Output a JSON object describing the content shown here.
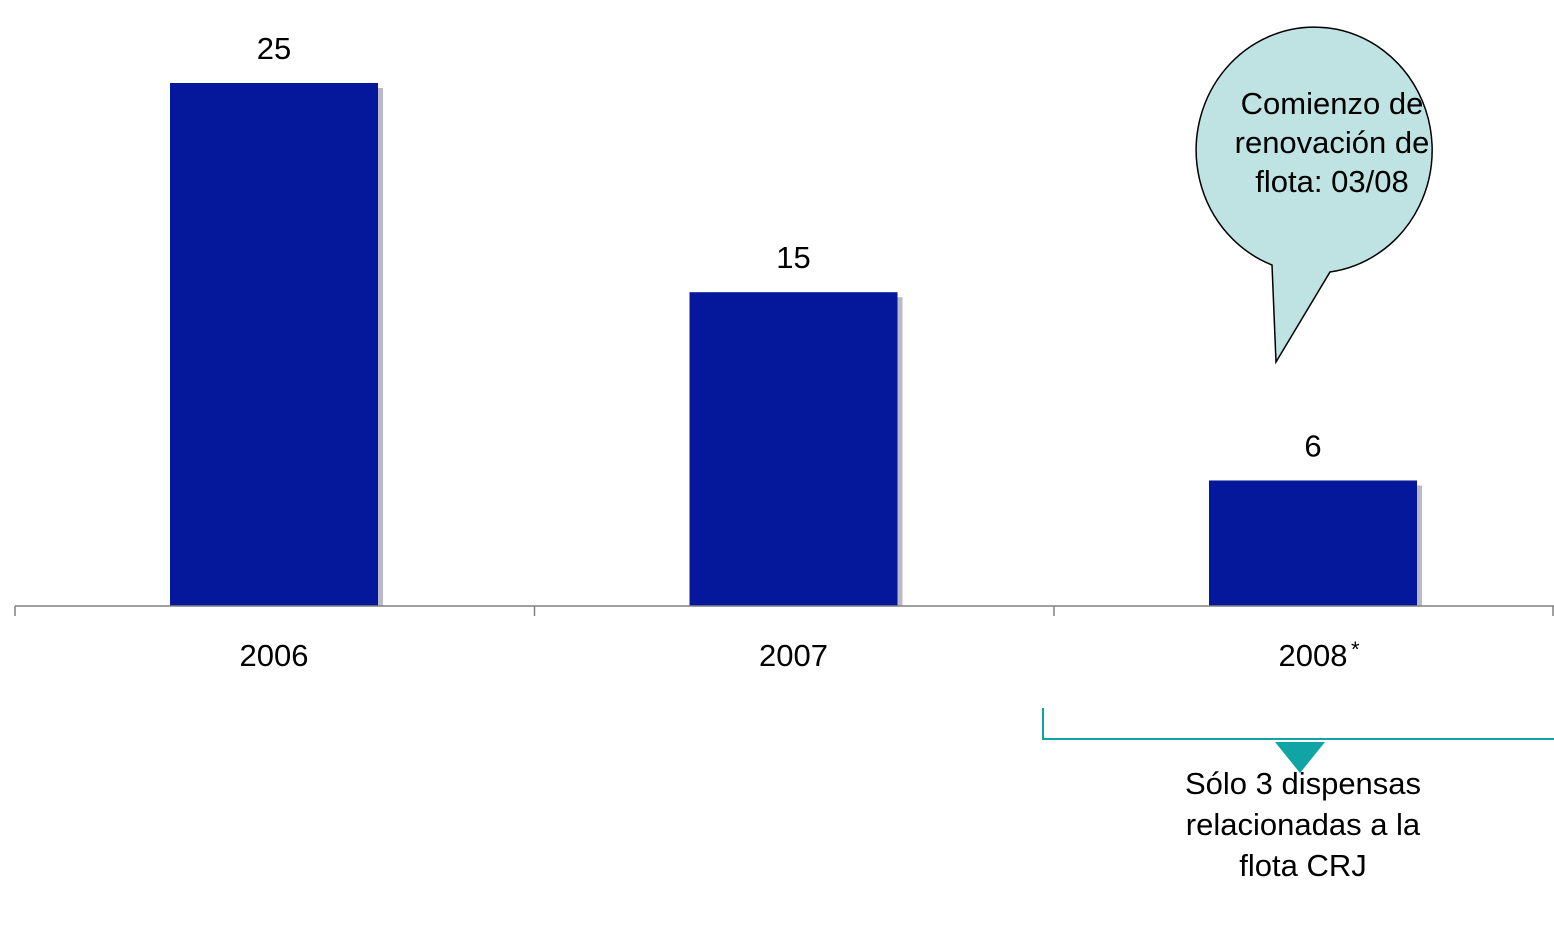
{
  "chart_data": {
    "type": "bar",
    "categories": [
      "2006",
      "2007",
      "2008"
    ],
    "values": [
      25,
      15,
      6
    ],
    "data_labels": [
      "25",
      "15",
      "6"
    ],
    "category_marks": [
      "",
      "",
      "*"
    ],
    "title": "",
    "xlabel": "",
    "ylabel": "",
    "ylim": [
      0,
      25
    ],
    "grid": false,
    "legend": "none",
    "bar_color": "#05179B",
    "bar_shadow_color": "#B9B9C9"
  },
  "annotations": {
    "callout": {
      "lines": [
        "Comienzo de",
        "renovación de",
        "flota: 03/08"
      ],
      "fill": "#BFE3E2",
      "target_category": "2008"
    },
    "note": {
      "lines": [
        "Sólo 3 dispensas",
        "relacionadas a la",
        "flota CRJ"
      ],
      "bracket_color": "#10A4A4",
      "target_category": "2008"
    }
  }
}
